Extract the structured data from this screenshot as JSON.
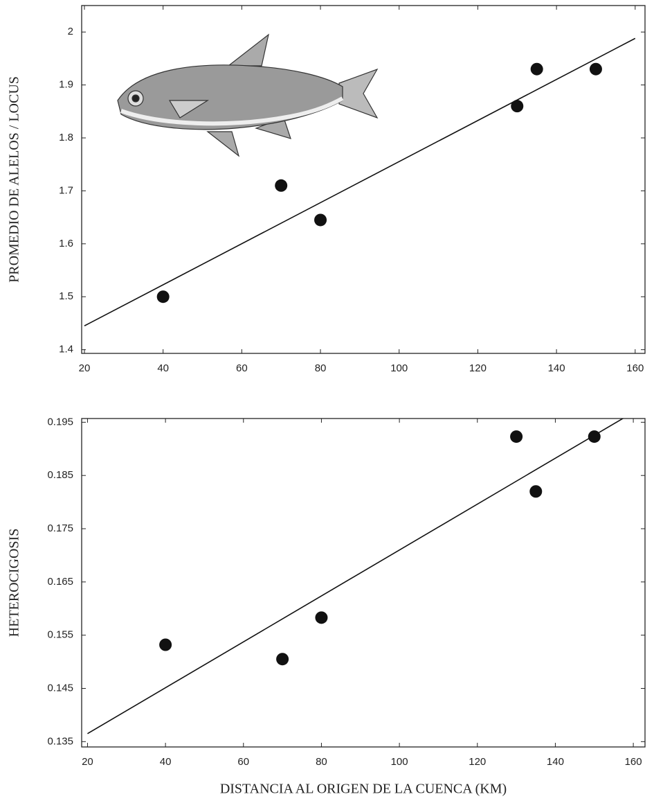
{
  "chart_data": [
    {
      "type": "scatter",
      "ylabel": "PROMEDIO DE ALELOS / LOCUS",
      "x": [
        40,
        70,
        80,
        130,
        135,
        150
      ],
      "values": [
        1.5,
        1.71,
        1.645,
        1.86,
        1.93,
        1.93
      ],
      "fit": {
        "x": [
          20,
          160
        ],
        "y": [
          1.445,
          1.988
        ]
      },
      "xlim": [
        19.3,
        162.5
      ],
      "xticks": [
        20,
        40,
        60,
        80,
        100,
        120,
        140,
        160
      ],
      "ylim": [
        1.393,
        2.05
      ],
      "yticks": [
        1.4,
        1.5,
        1.6,
        1.7,
        1.8,
        1.9,
        2
      ],
      "color": "#111111"
    },
    {
      "type": "scatter",
      "ylabel": "HETEROCIGOSIS",
      "xlabel": "DISTANCIA AL ORIGEN DE LA CUENCA (KM)",
      "x": [
        40,
        70,
        80,
        130,
        135,
        150
      ],
      "values": [
        0.1532,
        0.1505,
        0.1583,
        0.1923,
        0.182,
        0.1923
      ],
      "fit": {
        "x": [
          20,
          158
        ],
        "y": [
          0.1365,
          0.196
        ]
      },
      "xlim": [
        18.5,
        163
      ],
      "xticks": [
        20,
        40,
        60,
        80,
        100,
        120,
        140,
        160
      ],
      "ylim": [
        0.134,
        0.1957
      ],
      "yticks": [
        0.135,
        0.145,
        0.155,
        0.165,
        0.175,
        0.185,
        0.195
      ],
      "color": "#111111"
    }
  ]
}
